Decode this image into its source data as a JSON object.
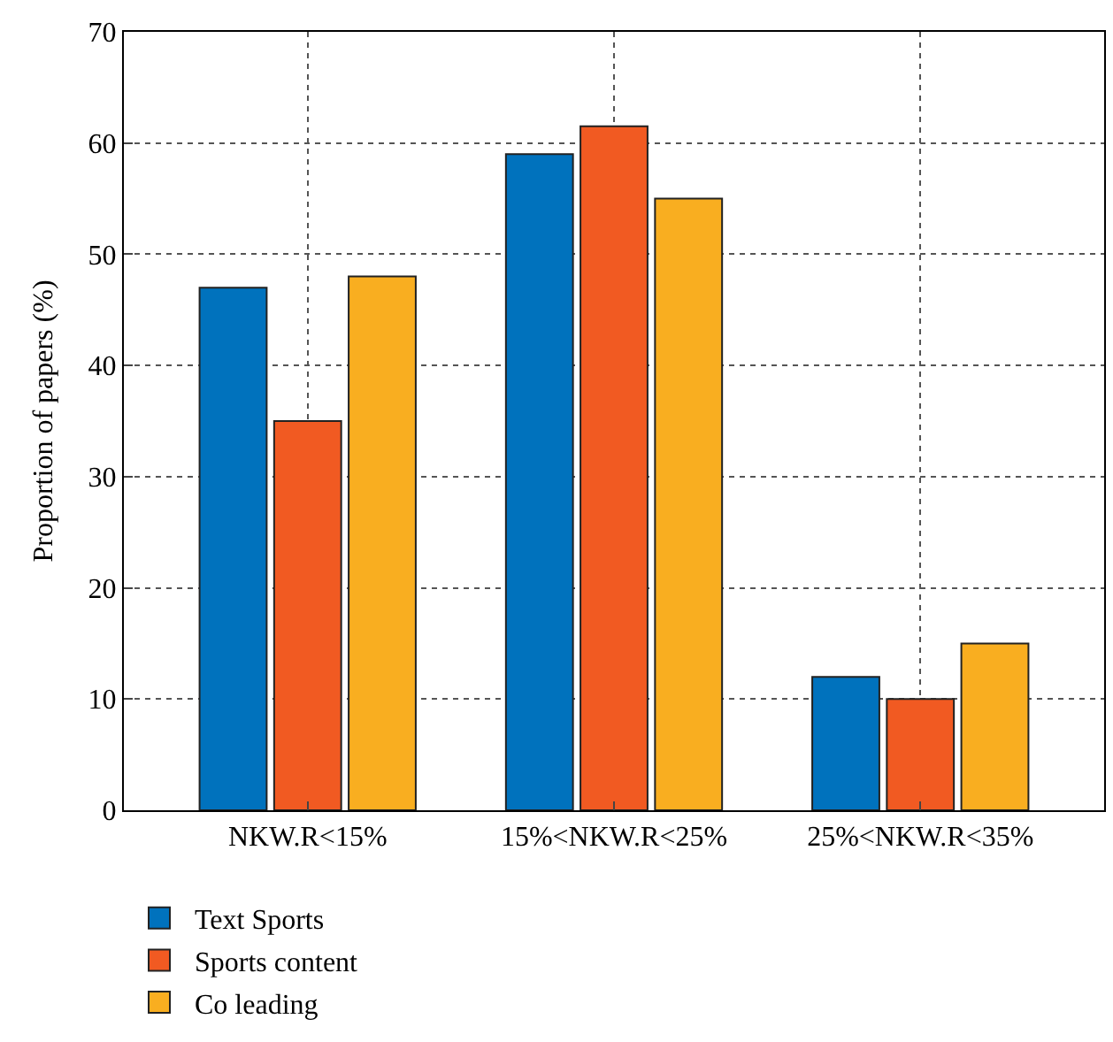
{
  "chart_data": {
    "type": "bar",
    "ylabel": "Proportion of papers (%)",
    "categories": [
      "NKW.R<15%",
      "15%<NKW.R<25%",
      "25%<NKW.R<35%"
    ],
    "series": [
      {
        "name": "Text Sports",
        "color": "#0072bd",
        "values": [
          47,
          59,
          12
        ]
      },
      {
        "name": "Sports content",
        "color": "#f15a22",
        "values": [
          35,
          61.5,
          10
        ]
      },
      {
        "name": "Co leading",
        "color": "#f9ae20",
        "values": [
          48,
          55,
          15
        ]
      }
    ],
    "ylim": [
      0,
      70
    ],
    "yticks": [
      0,
      10,
      20,
      30,
      40,
      50,
      60,
      70
    ],
    "grid": true,
    "legend": "bottom left"
  }
}
